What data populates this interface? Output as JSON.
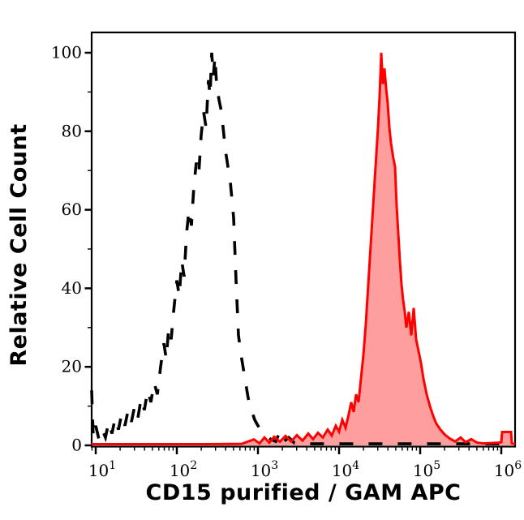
{
  "chart_data": {
    "type": "area",
    "subtype": "flow-cytometry-overlay-histogram",
    "title": "",
    "xlabel": "CD15 purified / GAM APC",
    "ylabel": "Relative Cell Count",
    "x_scale": "log10",
    "x_range_log10": [
      0.95,
      6.17
    ],
    "ylim": [
      0,
      106
    ],
    "y_ticks_major": [
      0,
      20,
      40,
      60,
      80,
      100
    ],
    "y_minor_tick_step": 10,
    "x_major_tick_exponents": [
      1,
      2,
      3,
      4,
      5,
      6
    ],
    "x_major_tick_base": "10",
    "grid": false,
    "legend_position": "none",
    "colors": {
      "control_line": "#000000",
      "positive_line": "#ff0000",
      "positive_fill": "rgba(255,0,0,0.38)",
      "frame": "#000000",
      "background": "#ffffff"
    },
    "series": [
      {
        "name": "negative control (dashed black)",
        "line_style": "dashed",
        "color": "#000000",
        "fill": "none",
        "points_log10x_y": [
          [
            0.95,
            14
          ],
          [
            0.97,
            2
          ],
          [
            1.0,
            5
          ],
          [
            1.04,
            1.5
          ],
          [
            1.08,
            4
          ],
          [
            1.12,
            2
          ],
          [
            1.16,
            6
          ],
          [
            1.2,
            3
          ],
          [
            1.24,
            7
          ],
          [
            1.28,
            4
          ],
          [
            1.32,
            8
          ],
          [
            1.36,
            5
          ],
          [
            1.4,
            9
          ],
          [
            1.44,
            6
          ],
          [
            1.48,
            10
          ],
          [
            1.52,
            7
          ],
          [
            1.56,
            12
          ],
          [
            1.6,
            9
          ],
          [
            1.64,
            14
          ],
          [
            1.68,
            11
          ],
          [
            1.72,
            16
          ],
          [
            1.76,
            13
          ],
          [
            1.8,
            20
          ],
          [
            1.84,
            26
          ],
          [
            1.87,
            22
          ],
          [
            1.9,
            30
          ],
          [
            1.93,
            27
          ],
          [
            1.96,
            34
          ],
          [
            2.0,
            42
          ],
          [
            2.03,
            38
          ],
          [
            2.06,
            47
          ],
          [
            2.09,
            43
          ],
          [
            2.12,
            54
          ],
          [
            2.15,
            60
          ],
          [
            2.18,
            56
          ],
          [
            2.21,
            66
          ],
          [
            2.24,
            72
          ],
          [
            2.27,
            69
          ],
          [
            2.3,
            79
          ],
          [
            2.33,
            85
          ],
          [
            2.36,
            81
          ],
          [
            2.39,
            93
          ],
          [
            2.41,
            89
          ],
          [
            2.43,
            100
          ],
          [
            2.45,
            94
          ],
          [
            2.47,
            99
          ],
          [
            2.49,
            92
          ],
          [
            2.52,
            88
          ],
          [
            2.55,
            85
          ],
          [
            2.57,
            81
          ],
          [
            2.6,
            75
          ],
          [
            2.63,
            71
          ],
          [
            2.66,
            67
          ],
          [
            2.7,
            58
          ],
          [
            2.73,
            42
          ],
          [
            2.76,
            28
          ],
          [
            2.8,
            22
          ],
          [
            2.84,
            17
          ],
          [
            2.88,
            12
          ],
          [
            2.92,
            9
          ],
          [
            2.96,
            6.5
          ],
          [
            3.0,
            5
          ],
          [
            3.05,
            3.5
          ],
          [
            3.1,
            2.5
          ],
          [
            3.16,
            1.5
          ],
          [
            3.22,
            1
          ],
          [
            3.27,
            3.5
          ],
          [
            3.32,
            1
          ],
          [
            3.38,
            2
          ],
          [
            3.45,
            0.6
          ],
          [
            3.6,
            0.4
          ],
          [
            4.0,
            0.4
          ],
          [
            4.5,
            0.4
          ],
          [
            5.0,
            0.4
          ],
          [
            5.5,
            0.4
          ],
          [
            6.17,
            0.4
          ]
        ]
      },
      {
        "name": "CD15 purified / GAM APC (red filled)",
        "line_style": "solid",
        "color": "#ff0000",
        "fill": "rgba(255,0,0,0.38)",
        "points_log10x_y": [
          [
            0.95,
            0.3
          ],
          [
            1.6,
            0.3
          ],
          [
            2.3,
            0.3
          ],
          [
            2.8,
            0.4
          ],
          [
            2.95,
            1.5
          ],
          [
            3.02,
            0.5
          ],
          [
            3.08,
            2
          ],
          [
            3.14,
            0.7
          ],
          [
            3.2,
            2.2
          ],
          [
            3.27,
            0.9
          ],
          [
            3.34,
            2.4
          ],
          [
            3.41,
            1
          ],
          [
            3.48,
            2.6
          ],
          [
            3.55,
            1.2
          ],
          [
            3.62,
            3
          ],
          [
            3.68,
            1.6
          ],
          [
            3.74,
            3.2
          ],
          [
            3.8,
            2
          ],
          [
            3.86,
            4
          ],
          [
            3.91,
            2.5
          ],
          [
            3.96,
            5
          ],
          [
            4.0,
            3.5
          ],
          [
            4.04,
            6.5
          ],
          [
            4.08,
            4.5
          ],
          [
            4.12,
            8
          ],
          [
            4.15,
            11
          ],
          [
            4.18,
            8.5
          ],
          [
            4.21,
            13
          ],
          [
            4.24,
            11
          ],
          [
            4.27,
            17
          ],
          [
            4.3,
            23
          ],
          [
            4.33,
            31
          ],
          [
            4.36,
            41
          ],
          [
            4.39,
            51
          ],
          [
            4.42,
            61
          ],
          [
            4.45,
            71
          ],
          [
            4.48,
            81
          ],
          [
            4.5,
            89
          ],
          [
            4.52,
            100
          ],
          [
            4.54,
            92
          ],
          [
            4.56,
            96
          ],
          [
            4.58,
            91
          ],
          [
            4.6,
            87
          ],
          [
            4.62,
            81
          ],
          [
            4.64,
            77
          ],
          [
            4.67,
            73
          ],
          [
            4.69,
            71
          ],
          [
            4.71,
            61
          ],
          [
            4.73,
            54
          ],
          [
            4.75,
            47
          ],
          [
            4.77,
            41
          ],
          [
            4.79,
            37
          ],
          [
            4.81,
            34
          ],
          [
            4.83,
            30
          ],
          [
            4.86,
            34
          ],
          [
            4.89,
            28
          ],
          [
            4.92,
            35
          ],
          [
            4.95,
            27
          ],
          [
            4.98,
            24
          ],
          [
            5.01,
            21
          ],
          [
            5.04,
            17
          ],
          [
            5.08,
            13
          ],
          [
            5.12,
            10
          ],
          [
            5.16,
            7.5
          ],
          [
            5.2,
            5.5
          ],
          [
            5.25,
            4
          ],
          [
            5.3,
            2.8
          ],
          [
            5.36,
            1.8
          ],
          [
            5.43,
            1
          ],
          [
            5.5,
            2
          ],
          [
            5.56,
            0.8
          ],
          [
            5.63,
            1.6
          ],
          [
            5.7,
            0.7
          ],
          [
            5.78,
            0.5
          ],
          [
            5.88,
            0.6
          ],
          [
            5.97,
            0.7
          ],
          [
            6.0,
            0.8
          ],
          [
            6.01,
            3.4
          ],
          [
            6.12,
            3.4
          ],
          [
            6.13,
            0.5
          ],
          [
            6.17,
            0.4
          ]
        ]
      }
    ]
  }
}
